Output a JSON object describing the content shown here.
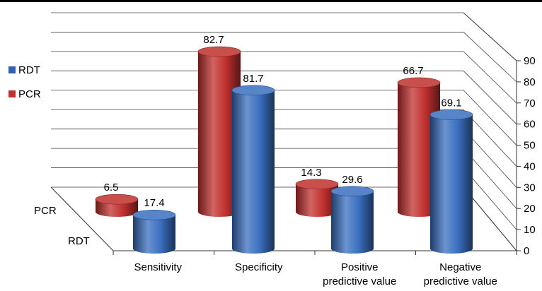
{
  "chart_data": {
    "type": "bar",
    "style": "3d-cylinder",
    "categories": [
      "Sensitivity",
      "Specificity",
      "Positive predictive value",
      "Negative predictive value"
    ],
    "category_lines": [
      [
        "Sensitivity"
      ],
      [
        "Specificity"
      ],
      [
        "Positive",
        "predictive value"
      ],
      [
        "Negative",
        "predictive value"
      ]
    ],
    "series": [
      {
        "name": "PCR",
        "color": "#c0302e",
        "values": [
          6.5,
          82.7,
          14.3,
          66.7
        ]
      },
      {
        "name": "RDT",
        "color": "#3a6fc0",
        "values": [
          17.4,
          81.7,
          29.6,
          69.1
        ]
      }
    ],
    "depth_labels": [
      "PCR",
      "RDT"
    ],
    "ylim": [
      0,
      90
    ],
    "y_ticks": [
      0,
      10,
      20,
      30,
      40,
      50,
      60,
      70,
      80,
      90
    ],
    "legend": [
      {
        "name": "RDT",
        "color": "#2f62b5"
      },
      {
        "name": "PCR",
        "color": "#c0302e"
      }
    ],
    "legend_position": "left",
    "grid": true
  }
}
